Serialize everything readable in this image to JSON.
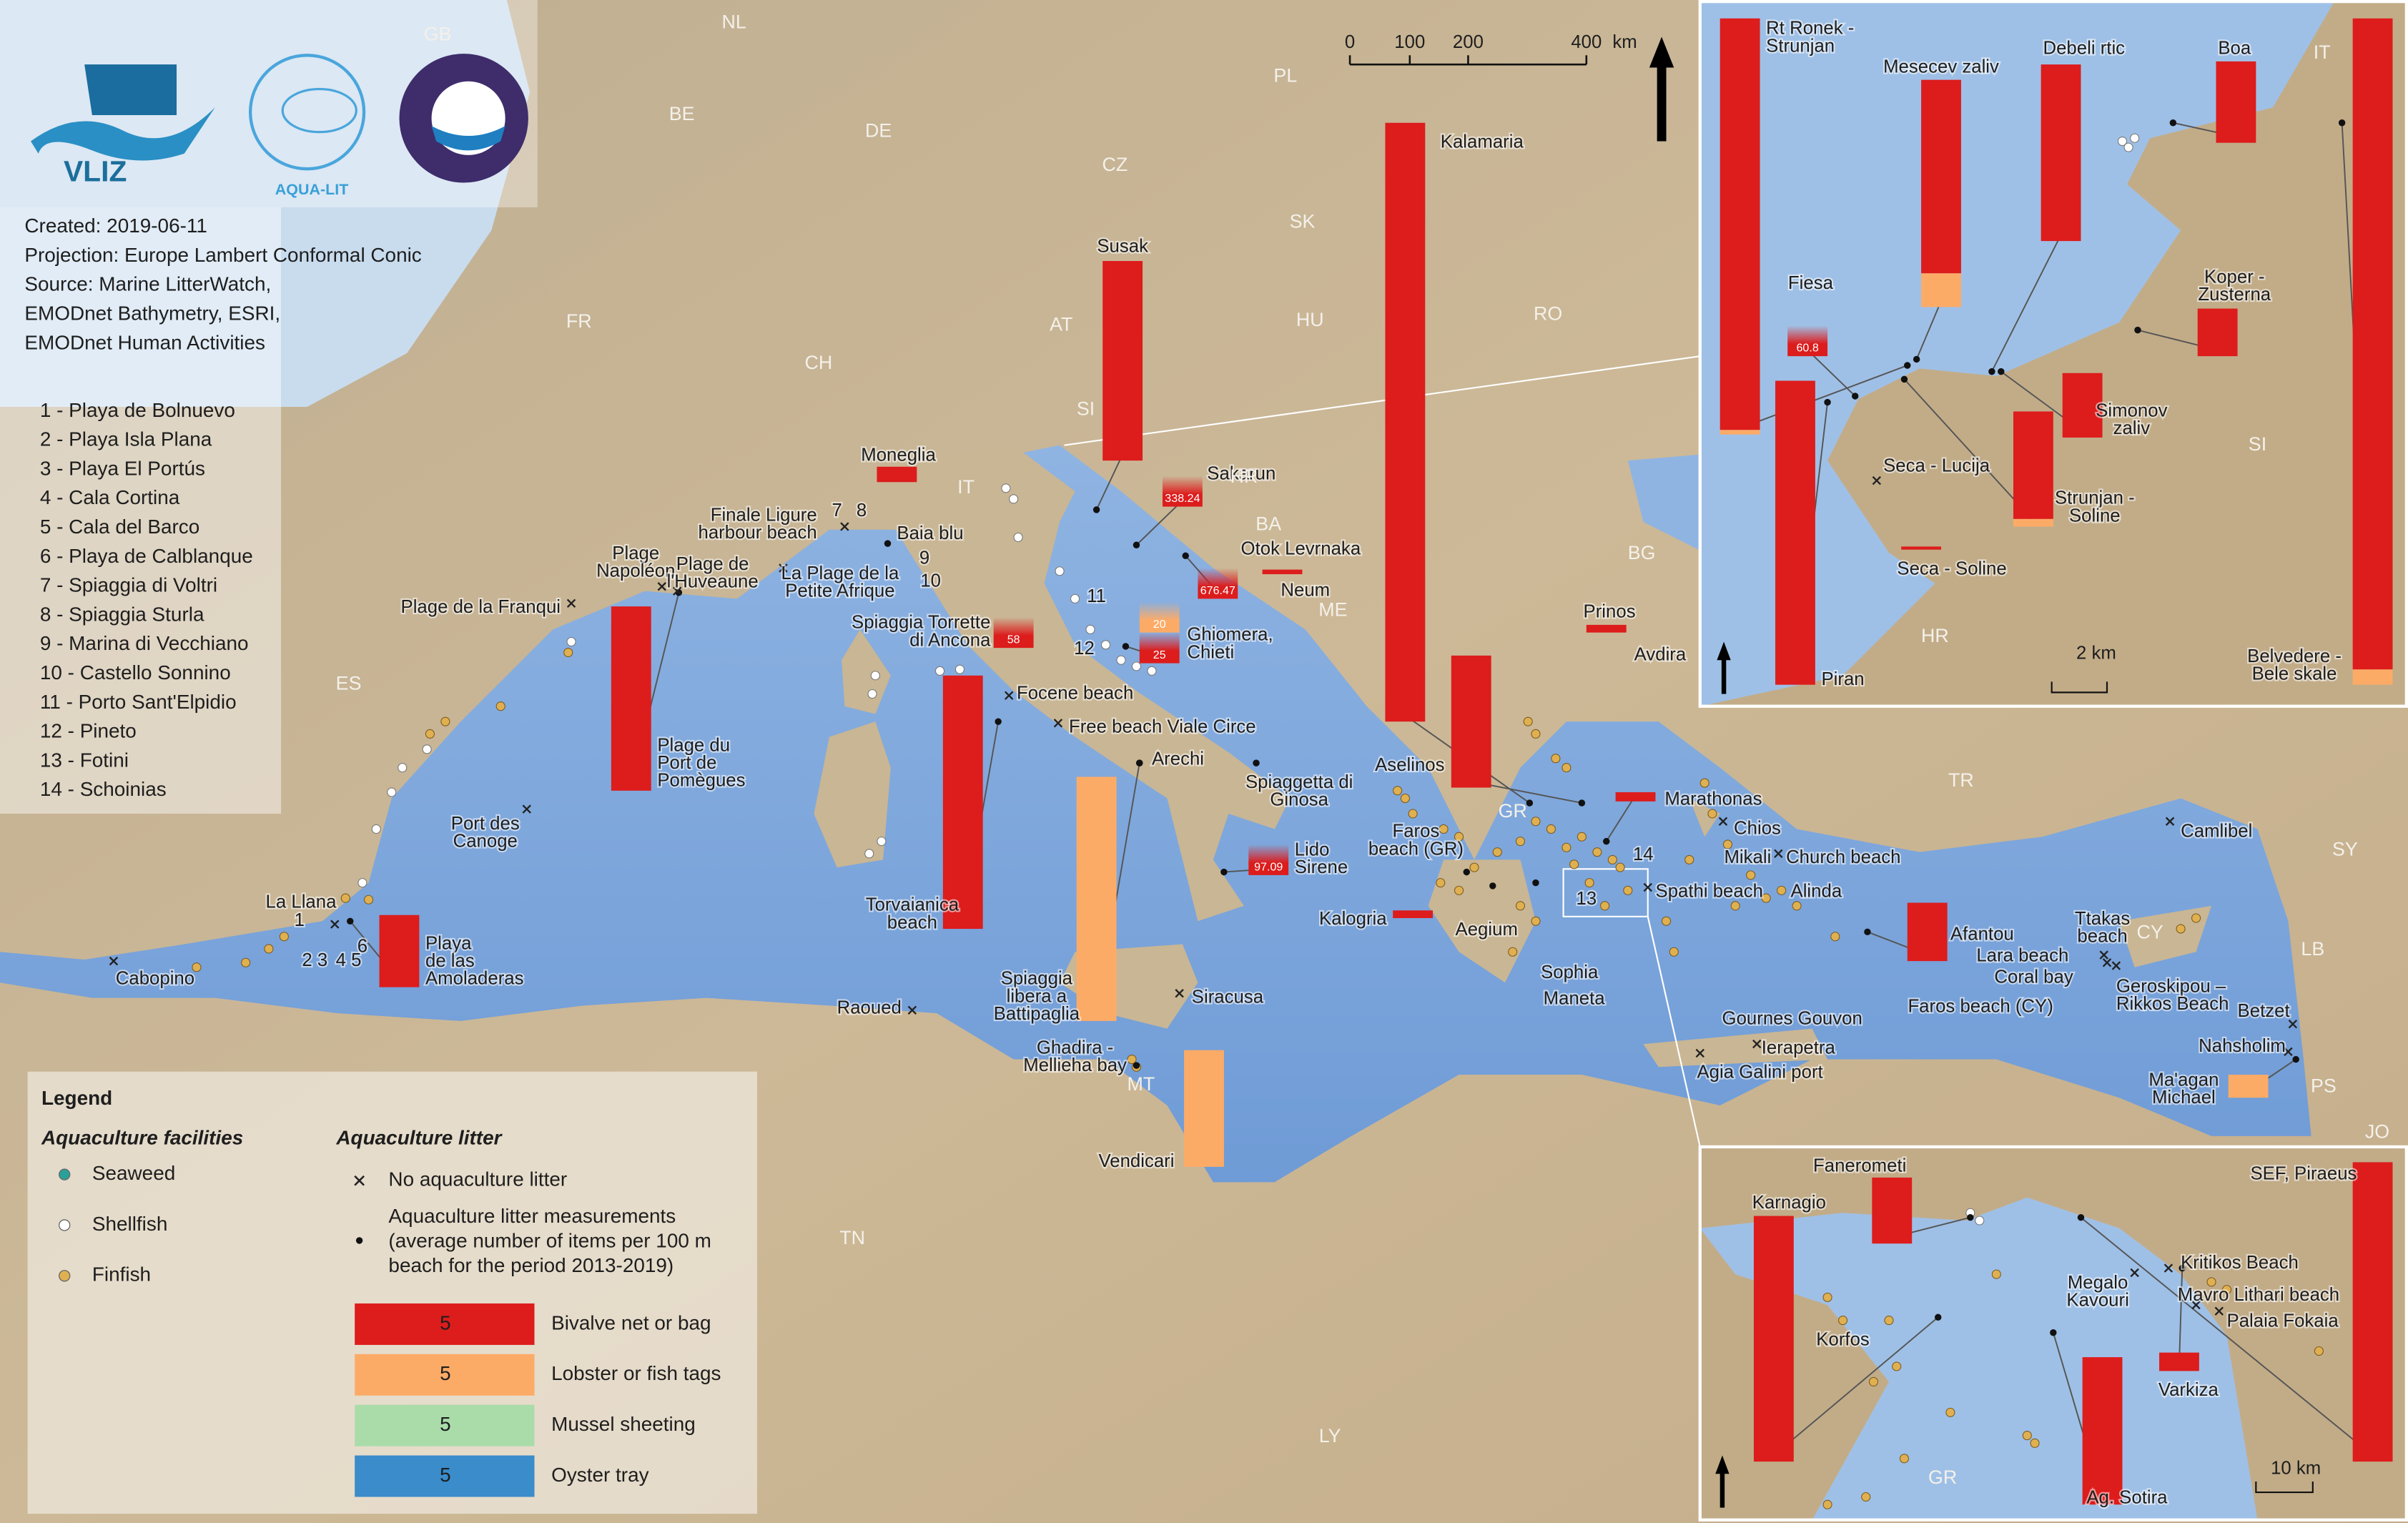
{
  "logos": {
    "vliz": "VLIZ",
    "aqualit": "AQUA-LIT"
  },
  "info": [
    "Created: 2019-06-11",
    "Projection: Europe Lambert  Conformal Conic",
    "Source: Marine LitterWatch,",
    "EMODnet Bathymetry, ESRI,",
    "EMODnet Human Activities"
  ],
  "beach_list": [
    "1 - Playa de Bolnuevo",
    "2 - Playa Isla Plana",
    "3 - Playa El Portús",
    "4 - Cala Cortina",
    "5 - Cala del Barco",
    "6 - Playa de Calblanque",
    "7 - Spiaggia di Voltri",
    "8 - Spiaggia Sturla",
    "9 - Marina di Vecchiano",
    "10 - Castello Sonnino",
    "11 - Porto Sant'Elpidio",
    "12 - Pineto",
    "13 - Fotini",
    "14 - Schoinias"
  ],
  "scale_bar": {
    "ticks": [
      "0",
      "100",
      "200",
      "400"
    ],
    "unit": "km"
  },
  "countries": [
    "GB",
    "NL",
    "BE",
    "DE",
    "PL",
    "CZ",
    "SK",
    "FR",
    "CH",
    "AT",
    "HU",
    "RO",
    "SI",
    "HR",
    "BA",
    "IT",
    "ES",
    "ME",
    "BG",
    "TR",
    "GR",
    "CY",
    "SY",
    "LB",
    "PS",
    "JO",
    "TN",
    "LY",
    "MT"
  ],
  "map_numbers": [
    "1",
    "2",
    "3",
    "4",
    "5",
    "6",
    "7",
    "8",
    "9",
    "10",
    "11",
    "12",
    "13",
    "14"
  ],
  "legend": {
    "title": "Legend",
    "facilities_title": "Aquaculture facilities",
    "facilities": [
      "Seaweed",
      "Shellfish",
      "Finfish"
    ],
    "litter_title": "Aquaculture litter",
    "no_litter": "No aquaculture litter",
    "measurements": [
      "Aquaculture litter measurements",
      "(average number of items per 100 m",
      "beach for the period 2013-2019)"
    ],
    "types": [
      {
        "name": "Bivalve net or bag",
        "color": "#dd1c1c",
        "value": 5
      },
      {
        "name": "Lobster or fish tags",
        "color": "#fcab67",
        "value": 5
      },
      {
        "name": "Mussel sheeting",
        "color": "#a9dca9",
        "value": 5
      },
      {
        "name": "Oyster tray",
        "color": "#3a8ccb",
        "value": 5
      }
    ]
  },
  "main_map": {
    "sites": [
      {
        "name": "Kalamaria",
        "bars": [
          {
            "type": 0,
            "value": 195
          }
        ]
      },
      {
        "name": "Susak",
        "bars": [
          {
            "type": 0,
            "value": 65
          }
        ]
      },
      {
        "name": "Moneglia",
        "bars": [
          {
            "type": 0,
            "value": 5
          }
        ]
      },
      {
        "name": "Sakarun",
        "bars": [
          {
            "type": 0,
            "value": 338.24,
            "faded": true
          }
        ]
      },
      {
        "name": "Otok Levrnaka",
        "bars": [
          {
            "type": 0,
            "value": 676.47,
            "faded": true
          }
        ]
      },
      {
        "name": "Neum",
        "bars": [
          {
            "type": 0,
            "value": 1.5
          }
        ]
      },
      {
        "name": [
          "Ghiomera,",
          "Chieti"
        ],
        "bars": [
          {
            "type": 0,
            "value": 25,
            "faded": true
          },
          {
            "type": 1,
            "value": 20,
            "faded": true
          }
        ]
      },
      {
        "name": [
          "Spiaggia Torrette",
          "di Ancona"
        ],
        "bars": [
          {
            "type": 0,
            "value": 58,
            "faded": true
          }
        ]
      },
      {
        "name": "Prinos",
        "bars": [
          {
            "type": 0,
            "value": 2.5
          }
        ]
      },
      {
        "name": [
          "Plage du",
          "Port de",
          "Pomègues"
        ],
        "bars": [
          {
            "type": 0,
            "value": 60
          }
        ]
      },
      {
        "name": [
          "Torvaianica",
          "beach"
        ],
        "bars": [
          {
            "type": 0,
            "value": 82.5
          }
        ]
      },
      {
        "name": [
          "Spiaggia",
          "libera a",
          "Battipaglia"
        ],
        "bars": [
          {
            "type": 1,
            "value": 79.5
          }
        ]
      },
      {
        "name": "Vendicari",
        "bars": [
          {
            "type": 1,
            "value": 38
          }
        ]
      },
      {
        "name": [
          "Lido",
          "Sirene"
        ],
        "bars": [
          {
            "type": 0,
            "value": 97.09,
            "faded": true
          }
        ]
      },
      {
        "name": "Aselinos",
        "bars": [
          {
            "type": 0,
            "value": 43
          }
        ]
      },
      {
        "name": "Marathonas",
        "bars": [
          {
            "type": 0,
            "value": 3
          }
        ]
      },
      {
        "name": "Kalogria",
        "bars": [
          {
            "type": 0,
            "value": 2.5
          }
        ]
      },
      {
        "name": [
          "Playa",
          "de las",
          "Amoladeras"
        ],
        "bars": [
          {
            "type": 0,
            "value": 23.5
          }
        ]
      },
      {
        "name": "Afantou",
        "bars": [
          {
            "type": 0,
            "value": 19
          }
        ]
      },
      {
        "name": [
          "Ma'agan",
          "Michael"
        ],
        "bars": [
          {
            "type": 1,
            "value": 7.5
          }
        ]
      },
      {
        "name": [
          "Plage",
          "Napoléon"
        ]
      },
      {
        "name": [
          "Plage de",
          "l'Huveaune"
        ]
      },
      {
        "name": "Plage de la Franqui"
      },
      {
        "name": [
          "Finale Ligure",
          "harbour beach"
        ]
      },
      {
        "name": [
          "La Plage de la",
          "Petite Afrique"
        ]
      },
      {
        "name": "Baia blu"
      },
      {
        "name": [
          "Port des",
          "Canoge"
        ]
      },
      {
        "name": "La Llana"
      },
      {
        "name": "Cabopino"
      },
      {
        "name": "Raoued"
      },
      {
        "name": "Siracusa"
      },
      {
        "name": [
          "Ghadira -",
          "Mellieha bay"
        ]
      },
      {
        "name": "Focene beach"
      },
      {
        "name": "Free beach Viale Circe"
      },
      {
        "name": "Arechi"
      },
      {
        "name": [
          "Spiaggetta di",
          "Ginosa"
        ]
      },
      {
        "name": [
          "Faros",
          "beach (GR)"
        ]
      },
      {
        "name": "Aegium"
      },
      {
        "name": "Sophia"
      },
      {
        "name": "Maneta"
      },
      {
        "name": "Avdira"
      },
      {
        "name": "Chios"
      },
      {
        "name": "Mikali"
      },
      {
        "name": "Church beach"
      },
      {
        "name": "Spathi beach"
      },
      {
        "name": "Alinda"
      },
      {
        "name": "Camlibel"
      },
      {
        "name": [
          "Ttakas",
          "beach"
        ]
      },
      {
        "name": "Lara beach"
      },
      {
        "name": "Coral bay"
      },
      {
        "name": "Faros beach (CY)"
      },
      {
        "name": [
          "Geroskipou –",
          "Rikkos Beach"
        ]
      },
      {
        "name": "Gournes Gouvon"
      },
      {
        "name": "Ierapetra"
      },
      {
        "name": "Agia Galini port"
      },
      {
        "name": "Betzet"
      },
      {
        "name": "Nahsholim"
      }
    ]
  },
  "inset_north": {
    "labels": [
      "IT",
      "SI",
      "HR"
    ],
    "scale": "2 km",
    "sites": [
      {
        "name": [
          "Rt Ronek -",
          "Strunjan"
        ],
        "bars": [
          {
            "type": 1,
            "value": 1.5
          },
          {
            "type": 0,
            "value": 134
          }
        ]
      },
      {
        "name": "Mesecev zaliv",
        "bars": [
          {
            "type": 1,
            "value": 11
          },
          {
            "type": 0,
            "value": 63
          }
        ]
      },
      {
        "name": "Debeli rtic",
        "bars": [
          {
            "type": 0,
            "value": 57.5
          }
        ]
      },
      {
        "name": "Boa",
        "bars": [
          {
            "type": 0,
            "value": 26.5
          }
        ]
      },
      {
        "name": "Fiesa",
        "bars": [
          {
            "type": 0,
            "value": 60.8,
            "faded": true
          }
        ]
      },
      {
        "name": [
          "Koper -",
          "Zusterna"
        ],
        "bars": [
          {
            "type": 0,
            "value": 15.5
          }
        ]
      },
      {
        "name": [
          "Simonov",
          "zaliv"
        ],
        "bars": [
          {
            "type": 0,
            "value": 21
          }
        ]
      },
      {
        "name": [
          "Strunjan -",
          "Soline"
        ],
        "bars": [
          {
            "type": 1,
            "value": 2.5
          },
          {
            "type": 0,
            "value": 35
          }
        ]
      },
      {
        "name": "Piran",
        "bars": [
          {
            "type": 0,
            "value": 99
          }
        ]
      },
      {
        "name": "Seca - Lucija"
      },
      {
        "name": "Seca - Soline",
        "bars": [
          {
            "type": 0,
            "value": 1
          }
        ]
      },
      {
        "name": [
          "Belvedere -",
          "Bele skale"
        ],
        "bars": [
          {
            "type": 1,
            "value": 5
          },
          {
            "type": 0,
            "value": 212
          }
        ]
      }
    ]
  },
  "inset_south": {
    "labels": [
      "GR"
    ],
    "scale": "10 km",
    "sites": [
      {
        "name": "Fanerometi",
        "bars": [
          {
            "type": 0,
            "value": 21.5
          }
        ]
      },
      {
        "name": "Karnagio",
        "bars": [
          {
            "type": 0,
            "value": 80
          }
        ]
      },
      {
        "name": "SEF, Piraeus",
        "bars": [
          {
            "type": 0,
            "value": 97.5
          }
        ]
      },
      {
        "name": "Varkiza",
        "bars": [
          {
            "type": 0,
            "value": 6
          }
        ]
      },
      {
        "name": "Ag. Sotira",
        "bars": [
          {
            "type": 0,
            "value": 48
          }
        ]
      },
      {
        "name": [
          "Megalo",
          "Kavouri"
        ]
      },
      {
        "name": "Kritikos Beach"
      },
      {
        "name": "Mavro Lithari beach"
      },
      {
        "name": "Palaia Fokaia"
      },
      {
        "name": "Korfos"
      }
    ]
  }
}
